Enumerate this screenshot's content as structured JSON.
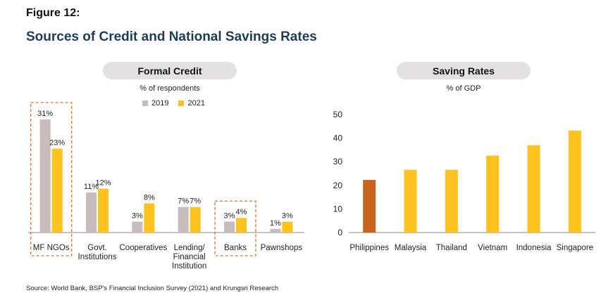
{
  "figure_label": "Figure 12:",
  "figure_title": "Sources of Credit and National Savings Rates",
  "source": "Source: World Bank, BSP's Financial Inclusion Survey (2021) and Krungsri Research",
  "chart_data": [
    {
      "type": "bar",
      "title": "Formal Credit",
      "subtitle": "% of respondents",
      "categories": [
        [
          "MF NGOs"
        ],
        [
          "Govt.",
          "Institutions"
        ],
        [
          "Cooperatives"
        ],
        [
          "Lending/",
          "Financial",
          "Institution"
        ],
        [
          "Banks"
        ],
        [
          "Pawnshops"
        ]
      ],
      "series": [
        {
          "name": "2019",
          "color": "#c9bcbc",
          "values": [
            31,
            11,
            3,
            7,
            3,
            1
          ],
          "labels": [
            "31%",
            "11%",
            "3%",
            "7%",
            "3%",
            "1%"
          ]
        },
        {
          "name": "2021",
          "color": "#ffc21f",
          "values": [
            23,
            12,
            8,
            7,
            4,
            3
          ],
          "labels": [
            "23%",
            "12%",
            "8%",
            "7%",
            "4%",
            "3%"
          ]
        }
      ],
      "ylim": [
        0,
        34
      ],
      "highlighted_categories": [
        "MF NGOs",
        "Banks"
      ],
      "highlight_color": "#d9742c",
      "legend_position": "top-center",
      "grid": false
    },
    {
      "type": "bar",
      "title": "Saving Rates",
      "subtitle": "% of GDP",
      "categories": [
        "Philippines",
        "Malaysia",
        "Thailand",
        "Vietnam",
        "Indonesia",
        "Singapore"
      ],
      "values": [
        22.3,
        26.6,
        26.6,
        32.6,
        37,
        43.2
      ],
      "colors": [
        "#c8651c",
        "#ffc21f",
        "#ffc21f",
        "#ffc21f",
        "#ffc21f",
        "#ffc21f"
      ],
      "yticks": [
        "0",
        "10",
        "20",
        "30",
        "40",
        "50"
      ],
      "ylim": [
        0,
        50
      ],
      "grid": false
    }
  ]
}
